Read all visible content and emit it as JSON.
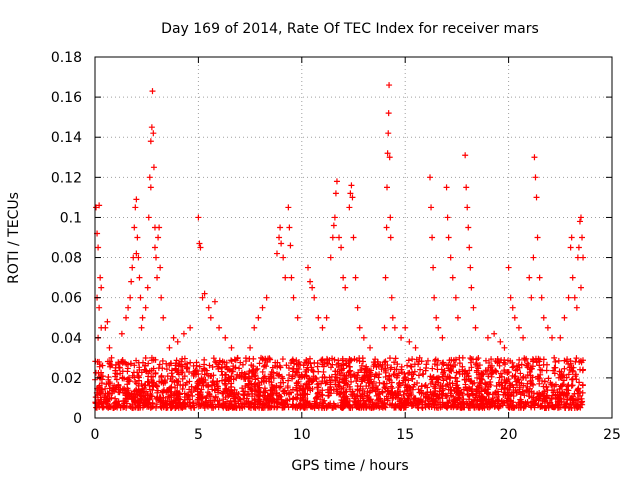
{
  "chart_data": {
    "type": "scatter",
    "title": "Day 169 of 2014, Rate Of TEC Index for receiver mars",
    "xlabel": "GPS time / hours",
    "ylabel": "ROTI / TECUs",
    "xlim": [
      0,
      25
    ],
    "ylim": [
      0,
      0.18
    ],
    "x_ticks": [
      0,
      5,
      10,
      15,
      20,
      25
    ],
    "y_ticks": [
      0,
      0.02,
      0.04,
      0.06,
      0.08,
      0.1,
      0.12,
      0.14,
      0.16,
      0.18
    ],
    "x_tick_labels": [
      "0",
      "5",
      "10",
      "15",
      "20",
      "25"
    ],
    "y_tick_labels": [
      "0",
      "0.02",
      "0.04",
      "0.06",
      "0.08",
      "0.1",
      "0.12",
      "0.14",
      "0.16",
      "0.18"
    ],
    "grid": true,
    "marker": "+",
    "color": "#ff0000",
    "background_band": {
      "x_range": [
        0,
        23.6
      ],
      "y_range": [
        0.005,
        0.03
      ],
      "description": "dense cloud of points"
    },
    "series": [
      {
        "name": "ROTI",
        "points": [
          [
            0.05,
            0.105
          ],
          [
            0.1,
            0.092
          ],
          [
            0.15,
            0.085
          ],
          [
            0.2,
            0.106
          ],
          [
            0.25,
            0.07
          ],
          [
            0.3,
            0.065
          ],
          [
            0.1,
            0.06
          ],
          [
            0.2,
            0.055
          ],
          [
            0.3,
            0.045
          ],
          [
            0.15,
            0.04
          ],
          [
            0.5,
            0.045
          ],
          [
            0.6,
            0.048
          ],
          [
            0.7,
            0.035
          ],
          [
            0.8,
            0.03
          ],
          [
            1.3,
            0.042
          ],
          [
            1.5,
            0.05
          ],
          [
            1.6,
            0.055
          ],
          [
            1.7,
            0.06
          ],
          [
            1.8,
            0.075
          ],
          [
            1.85,
            0.08
          ],
          [
            1.9,
            0.095
          ],
          [
            1.95,
            0.105
          ],
          [
            2.0,
            0.109
          ],
          [
            2.05,
            0.09
          ],
          [
            2.1,
            0.08
          ],
          [
            2.15,
            0.07
          ],
          [
            2.2,
            0.06
          ],
          [
            2.3,
            0.05
          ],
          [
            1.75,
            0.068
          ],
          [
            2.0,
            0.082
          ],
          [
            2.25,
            0.045
          ],
          [
            2.45,
            0.055
          ],
          [
            2.55,
            0.065
          ],
          [
            2.6,
            0.1
          ],
          [
            2.65,
            0.12
          ],
          [
            2.7,
            0.138
          ],
          [
            2.75,
            0.145
          ],
          [
            2.78,
            0.163
          ],
          [
            2.82,
            0.142
          ],
          [
            2.85,
            0.125
          ],
          [
            2.9,
            0.095
          ],
          [
            2.95,
            0.08
          ],
          [
            3.0,
            0.07
          ],
          [
            3.05,
            0.09
          ],
          [
            3.1,
            0.095
          ],
          [
            3.15,
            0.075
          ],
          [
            3.2,
            0.06
          ],
          [
            3.3,
            0.05
          ],
          [
            2.7,
            0.115
          ],
          [
            2.9,
            0.085
          ],
          [
            3.6,
            0.035
          ],
          [
            3.8,
            0.04
          ],
          [
            4.0,
            0.038
          ],
          [
            4.3,
            0.042
          ],
          [
            4.6,
            0.045
          ],
          [
            5.0,
            0.1
          ],
          [
            5.05,
            0.087
          ],
          [
            5.1,
            0.085
          ],
          [
            5.2,
            0.06
          ],
          [
            5.3,
            0.062
          ],
          [
            5.5,
            0.055
          ],
          [
            5.6,
            0.05
          ],
          [
            5.8,
            0.058
          ],
          [
            6.0,
            0.045
          ],
          [
            6.3,
            0.04
          ],
          [
            6.6,
            0.035
          ],
          [
            6.9,
            0.03
          ],
          [
            7.5,
            0.035
          ],
          [
            7.7,
            0.045
          ],
          [
            7.9,
            0.05
          ],
          [
            8.1,
            0.055
          ],
          [
            8.3,
            0.06
          ],
          [
            8.8,
            0.082
          ],
          [
            8.9,
            0.09
          ],
          [
            8.95,
            0.095
          ],
          [
            9.0,
            0.087
          ],
          [
            9.1,
            0.08
          ],
          [
            9.2,
            0.07
          ],
          [
            9.35,
            0.105
          ],
          [
            9.4,
            0.095
          ],
          [
            9.45,
            0.086
          ],
          [
            9.5,
            0.07
          ],
          [
            9.6,
            0.06
          ],
          [
            9.8,
            0.05
          ],
          [
            10.3,
            0.075
          ],
          [
            10.4,
            0.068
          ],
          [
            10.5,
            0.065
          ],
          [
            10.6,
            0.06
          ],
          [
            10.8,
            0.05
          ],
          [
            11.0,
            0.045
          ],
          [
            11.2,
            0.05
          ],
          [
            11.4,
            0.08
          ],
          [
            11.5,
            0.09
          ],
          [
            11.55,
            0.096
          ],
          [
            11.6,
            0.1
          ],
          [
            11.65,
            0.112
          ],
          [
            11.7,
            0.118
          ],
          [
            11.8,
            0.09
          ],
          [
            11.9,
            0.085
          ],
          [
            12.0,
            0.07
          ],
          [
            12.1,
            0.065
          ],
          [
            12.3,
            0.105
          ],
          [
            12.35,
            0.112
          ],
          [
            12.4,
            0.116
          ],
          [
            12.45,
            0.11
          ],
          [
            12.5,
            0.09
          ],
          [
            12.6,
            0.07
          ],
          [
            12.7,
            0.055
          ],
          [
            12.8,
            0.045
          ],
          [
            13.0,
            0.04
          ],
          [
            13.3,
            0.035
          ],
          [
            14.0,
            0.045
          ],
          [
            14.05,
            0.07
          ],
          [
            14.1,
            0.095
          ],
          [
            14.12,
            0.115
          ],
          [
            14.15,
            0.132
          ],
          [
            14.18,
            0.142
          ],
          [
            14.2,
            0.152
          ],
          [
            14.22,
            0.166
          ],
          [
            14.25,
            0.13
          ],
          [
            14.28,
            0.1
          ],
          [
            14.3,
            0.09
          ],
          [
            14.35,
            0.06
          ],
          [
            14.4,
            0.05
          ],
          [
            14.5,
            0.045
          ],
          [
            14.8,
            0.04
          ],
          [
            15.0,
            0.045
          ],
          [
            15.2,
            0.038
          ],
          [
            15.5,
            0.035
          ],
          [
            15.7,
            0.03
          ],
          [
            16.2,
            0.12
          ],
          [
            16.25,
            0.105
          ],
          [
            16.3,
            0.09
          ],
          [
            16.35,
            0.075
          ],
          [
            16.4,
            0.06
          ],
          [
            16.5,
            0.05
          ],
          [
            16.6,
            0.045
          ],
          [
            16.8,
            0.04
          ],
          [
            17.0,
            0.115
          ],
          [
            17.05,
            0.1
          ],
          [
            17.1,
            0.09
          ],
          [
            17.2,
            0.08
          ],
          [
            17.3,
            0.07
          ],
          [
            17.45,
            0.06
          ],
          [
            17.55,
            0.05
          ],
          [
            17.9,
            0.131
          ],
          [
            17.95,
            0.115
          ],
          [
            18.0,
            0.105
          ],
          [
            18.05,
            0.095
          ],
          [
            18.1,
            0.085
          ],
          [
            18.15,
            0.075
          ],
          [
            18.2,
            0.065
          ],
          [
            18.3,
            0.055
          ],
          [
            18.4,
            0.045
          ],
          [
            19.0,
            0.04
          ],
          [
            19.3,
            0.042
          ],
          [
            19.6,
            0.038
          ],
          [
            19.8,
            0.035
          ],
          [
            20.0,
            0.075
          ],
          [
            20.1,
            0.06
          ],
          [
            20.2,
            0.055
          ],
          [
            20.3,
            0.05
          ],
          [
            20.5,
            0.045
          ],
          [
            20.7,
            0.04
          ],
          [
            21.0,
            0.07
          ],
          [
            21.1,
            0.06
          ],
          [
            21.2,
            0.08
          ],
          [
            21.25,
            0.13
          ],
          [
            21.3,
            0.12
          ],
          [
            21.35,
            0.11
          ],
          [
            21.4,
            0.09
          ],
          [
            21.5,
            0.07
          ],
          [
            21.6,
            0.06
          ],
          [
            21.7,
            0.05
          ],
          [
            21.9,
            0.045
          ],
          [
            22.1,
            0.04
          ],
          [
            22.5,
            0.04
          ],
          [
            22.7,
            0.05
          ],
          [
            22.9,
            0.06
          ],
          [
            23.0,
            0.085
          ],
          [
            23.05,
            0.09
          ],
          [
            23.1,
            0.07
          ],
          [
            23.2,
            0.06
          ],
          [
            23.35,
            0.08
          ],
          [
            23.4,
            0.085
          ],
          [
            23.45,
            0.098
          ],
          [
            23.5,
            0.1
          ],
          [
            23.55,
            0.09
          ],
          [
            23.6,
            0.08
          ],
          [
            23.3,
            0.055
          ],
          [
            23.5,
            0.065
          ]
        ]
      }
    ]
  }
}
